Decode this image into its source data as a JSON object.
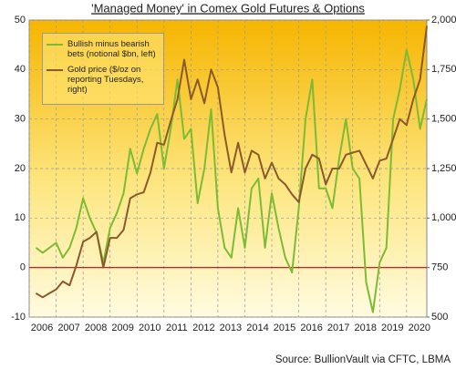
{
  "chart_data": {
    "type": "line",
    "title": "'Managed Money' in Comex Gold Futures & Options",
    "source": "Source: BullionVault via CFTC, LBMA",
    "x": [
      2006.25,
      2006.5,
      2006.75,
      2007,
      2007.25,
      2007.5,
      2007.75,
      2008,
      2008.25,
      2008.5,
      2008.75,
      2009,
      2009.25,
      2009.5,
      2009.75,
      2010,
      2010.25,
      2010.5,
      2010.75,
      2011,
      2011.25,
      2011.5,
      2011.75,
      2012,
      2012.25,
      2012.5,
      2012.75,
      2013,
      2013.25,
      2013.5,
      2013.75,
      2014,
      2014.25,
      2014.5,
      2014.75,
      2015,
      2015.25,
      2015.5,
      2015.75,
      2016,
      2016.25,
      2016.5,
      2016.75,
      2017,
      2017.25,
      2017.5,
      2017.75,
      2018,
      2018.25,
      2018.5,
      2018.75,
      2019,
      2019.25,
      2019.5,
      2019.75,
      2020,
      2020.25,
      2020.5,
      2020.75
    ],
    "series": [
      {
        "name": "Bullish minus bearish bets (notional $bn, left)",
        "color": "#7dbb35",
        "axis": "y",
        "values": [
          4,
          3,
          4,
          5,
          2,
          4,
          8,
          14,
          10,
          7,
          1,
          8,
          11,
          15,
          24,
          19,
          24,
          28,
          31,
          20,
          28,
          38,
          26,
          28,
          13,
          20,
          32,
          12,
          4,
          2,
          12,
          4,
          16,
          18,
          4,
          15,
          8,
          2,
          -1,
          12,
          30,
          38,
          16,
          16,
          12,
          22,
          30,
          20,
          18,
          -3,
          -9,
          1,
          4,
          30,
          36,
          44,
          38,
          28,
          34
        ]
      },
      {
        "name": "Gold price ($/oz on reporting Tuesdays, right)",
        "color": "#8b5a2b",
        "axis": "y2",
        "values": [
          620,
          600,
          620,
          640,
          680,
          660,
          760,
          880,
          900,
          930,
          750,
          900,
          900,
          940,
          1100,
          1120,
          1130,
          1230,
          1380,
          1370,
          1490,
          1600,
          1800,
          1600,
          1700,
          1580,
          1750,
          1660,
          1420,
          1230,
          1380,
          1230,
          1340,
          1320,
          1200,
          1280,
          1200,
          1170,
          1120,
          1080,
          1250,
          1320,
          1300,
          1170,
          1250,
          1250,
          1320,
          1330,
          1340,
          1270,
          1200,
          1290,
          1300,
          1400,
          1500,
          1470,
          1600,
          1700,
          1970
        ]
      }
    ],
    "xlim": [
      2006,
      2020.75
    ],
    "xticks": [
      2006,
      2007,
      2008,
      2009,
      2010,
      2011,
      2012,
      2013,
      2014,
      2015,
      2016,
      2017,
      2018,
      2019,
      2020
    ],
    "ylim": [
      -10,
      50
    ],
    "yticks": [
      -10,
      0,
      10,
      20,
      30,
      40,
      50
    ],
    "y2lim": [
      500,
      2000
    ],
    "y2ticks": [
      500,
      750,
      {
        "value": 1000,
        "label": "1,000"
      },
      {
        "value": 1250,
        "label": "1,250"
      },
      {
        "value": 1500,
        "label": "1,500"
      },
      {
        "value": 1750,
        "label": "1,750"
      },
      {
        "value": 2000,
        "label": "2,000"
      }
    ],
    "grid": true,
    "reference_line": 0,
    "reference_color": "#d40000"
  }
}
